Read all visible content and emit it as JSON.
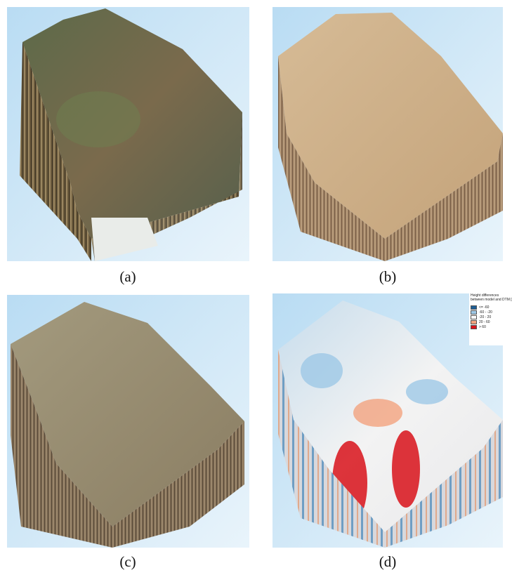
{
  "panels": [
    {
      "caption": "(a)"
    },
    {
      "caption": "(b)"
    },
    {
      "caption": "(c)"
    },
    {
      "caption": "(d)"
    }
  ],
  "legend": {
    "title_lines": [
      "Height differences",
      "between model and DTM [m"
    ],
    "items": [
      {
        "label": "<= -60",
        "color": "#1f5f96"
      },
      {
        "label": "-60 - -20",
        "color": "#9ec8e6"
      },
      {
        "label": "-20 - 20",
        "color": "#ffffff"
      },
      {
        "label": "20 - 60",
        "color": "#f2a37e"
      },
      {
        "label": "> 60",
        "color": "#d8121a"
      }
    ]
  }
}
